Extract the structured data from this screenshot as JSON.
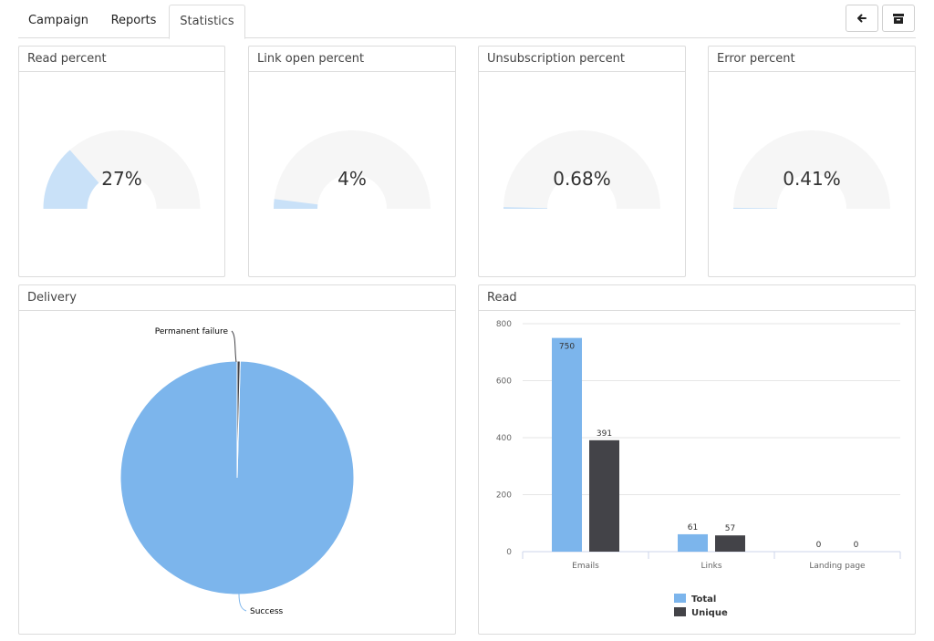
{
  "tabs": [
    {
      "label": "Campaign",
      "active": false
    },
    {
      "label": "Reports",
      "active": false
    },
    {
      "label": "Statistics",
      "active": true
    }
  ],
  "toolbar": {
    "back_icon": "arrow-left-icon",
    "archive_icon": "archive-icon"
  },
  "colors": {
    "primary": "#7cb5ec",
    "gauge_fill": "#c9e1f8",
    "gauge_track": "#f6f6f6",
    "secondary": "#434348"
  },
  "gauges": [
    {
      "title": "Read percent",
      "value_label": "27%",
      "value": 27
    },
    {
      "title": "Link open percent",
      "value_label": "4%",
      "value": 4
    },
    {
      "title": "Unsubscription percent",
      "value_label": "0.68%",
      "value": 0.68
    },
    {
      "title": "Error percent",
      "value_label": "0.41%",
      "value": 0.41
    }
  ],
  "delivery_panel": {
    "title": "Delivery"
  },
  "read_panel": {
    "title": "Read"
  },
  "chart_data": [
    {
      "type": "pie",
      "title": "Delivery",
      "labels": [
        "Success",
        "Permanent failure"
      ],
      "values": [
        99.59,
        0.41
      ]
    },
    {
      "type": "bar",
      "title": "Read",
      "categories": [
        "Emails",
        "Links",
        "Landing page"
      ],
      "series": [
        {
          "name": "Total",
          "values": [
            750,
            61,
            0
          ]
        },
        {
          "name": "Unique",
          "values": [
            391,
            57,
            0
          ]
        }
      ],
      "ylim": [
        0,
        800
      ],
      "yticks": [
        0,
        200,
        400,
        600,
        800
      ],
      "grid": true,
      "legend": "bottom"
    }
  ]
}
